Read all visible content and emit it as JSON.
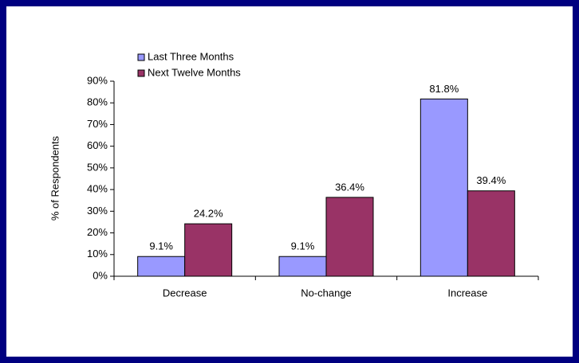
{
  "chart_data": {
    "type": "bar",
    "y_label": "% of Respondents",
    "categories": [
      "Decrease",
      "No-change",
      "Increase"
    ],
    "series": [
      {
        "name": "Last Three Months",
        "color": "#9999ff",
        "values": [
          9.1,
          9.1,
          81.8
        ],
        "value_labels": [
          "9.1%",
          "9.1%",
          "81.8%"
        ]
      },
      {
        "name": "Next Twelve Months",
        "color": "#993366",
        "values": [
          24.2,
          36.4,
          39.4
        ],
        "value_labels": [
          "24.2%",
          "36.4%",
          "39.4%"
        ]
      }
    ],
    "ylim": [
      0,
      90
    ],
    "yticks": [
      {
        "value": 0,
        "label": "0%"
      },
      {
        "value": 10,
        "label": "10%"
      },
      {
        "value": 20,
        "label": "20%"
      },
      {
        "value": 30,
        "label": "30%"
      },
      {
        "value": 40,
        "label": "40%"
      },
      {
        "value": 50,
        "label": "50%"
      },
      {
        "value": 60,
        "label": "60%"
      },
      {
        "value": 70,
        "label": "70%"
      },
      {
        "value": 80,
        "label": "80%"
      },
      {
        "value": 90,
        "label": "90%"
      }
    ],
    "legend": "top-left"
  }
}
